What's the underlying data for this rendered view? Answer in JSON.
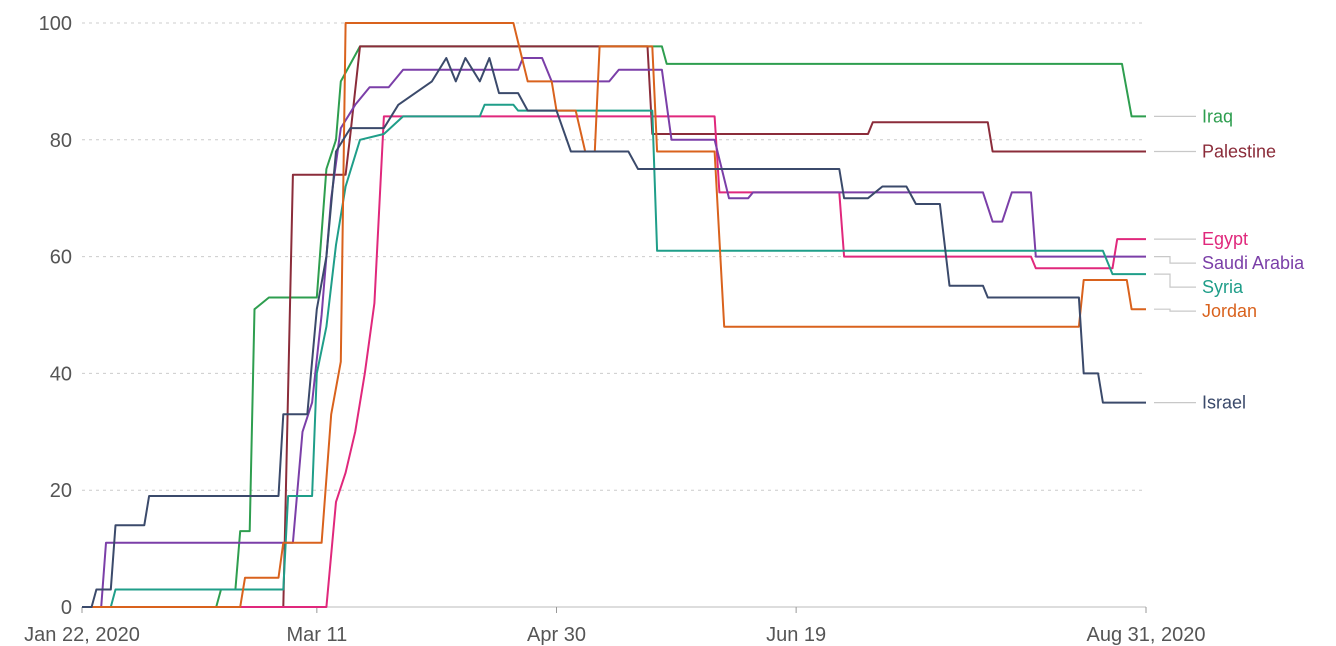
{
  "chart_data": {
    "type": "line",
    "title": "",
    "xlabel": "",
    "ylabel": "",
    "x_domain": [
      "2020-01-22",
      "2020-08-31"
    ],
    "ylim": [
      0,
      100
    ],
    "y_ticks": [
      0,
      20,
      40,
      60,
      80,
      100
    ],
    "y_tick_labels": [
      "0",
      "20",
      "40",
      "60",
      "80",
      "100"
    ],
    "x_ticks": [
      "2020-01-22",
      "2020-03-11",
      "2020-04-30",
      "2020-06-19",
      "2020-08-31"
    ],
    "x_tick_labels": [
      "Jan 22, 2020",
      "Mar 11",
      "Apr 30",
      "Jun 19",
      "Aug 31, 2020"
    ],
    "grid": "horizontal",
    "legend": "direct labels at right end",
    "series": [
      {
        "name": "Iraq",
        "color": "#2e9e4f",
        "points": [
          [
            "2020-01-22",
            0
          ],
          [
            "2020-02-19",
            0
          ],
          [
            "2020-02-20",
            3
          ],
          [
            "2020-02-23",
            3
          ],
          [
            "2020-02-24",
            13
          ],
          [
            "2020-02-26",
            13
          ],
          [
            "2020-02-27",
            51
          ],
          [
            "2020-03-01",
            53
          ],
          [
            "2020-03-11",
            53
          ],
          [
            "2020-03-13",
            75
          ],
          [
            "2020-03-15",
            80
          ],
          [
            "2020-03-16",
            90
          ],
          [
            "2020-03-20",
            96
          ],
          [
            "2020-05-22",
            96
          ],
          [
            "2020-05-23",
            93
          ],
          [
            "2020-08-26",
            93
          ],
          [
            "2020-08-28",
            84
          ],
          [
            "2020-08-31",
            84
          ]
        ]
      },
      {
        "name": "Palestine",
        "color": "#8b2c3a",
        "points": [
          [
            "2020-01-22",
            0
          ],
          [
            "2020-03-04",
            0
          ],
          [
            "2020-03-06",
            74
          ],
          [
            "2020-03-17",
            74
          ],
          [
            "2020-03-18",
            81
          ],
          [
            "2020-03-20",
            96
          ],
          [
            "2020-05-19",
            96
          ],
          [
            "2020-05-20",
            81
          ],
          [
            "2020-07-04",
            81
          ],
          [
            "2020-07-05",
            83
          ],
          [
            "2020-07-29",
            83
          ],
          [
            "2020-07-30",
            78
          ],
          [
            "2020-08-31",
            78
          ]
        ]
      },
      {
        "name": "Egypt",
        "color": "#e0287c",
        "points": [
          [
            "2020-01-22",
            0
          ],
          [
            "2020-03-13",
            0
          ],
          [
            "2020-03-15",
            18
          ],
          [
            "2020-03-17",
            23
          ],
          [
            "2020-03-19",
            30
          ],
          [
            "2020-03-21",
            40
          ],
          [
            "2020-03-23",
            52
          ],
          [
            "2020-03-25",
            84
          ],
          [
            "2020-06-02",
            84
          ],
          [
            "2020-06-03",
            71
          ],
          [
            "2020-06-28",
            71
          ],
          [
            "2020-06-29",
            60
          ],
          [
            "2020-08-07",
            60
          ],
          [
            "2020-08-08",
            58
          ],
          [
            "2020-08-24",
            58
          ],
          [
            "2020-08-25",
            63
          ],
          [
            "2020-08-31",
            63
          ]
        ]
      },
      {
        "name": "Saudi Arabia",
        "color": "#7b3fa8",
        "points": [
          [
            "2020-01-22",
            0
          ],
          [
            "2020-01-26",
            0
          ],
          [
            "2020-01-27",
            11
          ],
          [
            "2020-03-06",
            11
          ],
          [
            "2020-03-08",
            30
          ],
          [
            "2020-03-10",
            35
          ],
          [
            "2020-03-12",
            50
          ],
          [
            "2020-03-14",
            70
          ],
          [
            "2020-03-16",
            82
          ],
          [
            "2020-03-19",
            86
          ],
          [
            "2020-03-22",
            89
          ],
          [
            "2020-03-26",
            89
          ],
          [
            "2020-03-29",
            92
          ],
          [
            "2020-04-22",
            92
          ],
          [
            "2020-04-23",
            94
          ],
          [
            "2020-04-27",
            94
          ],
          [
            "2020-04-29",
            90
          ],
          [
            "2020-05-11",
            90
          ],
          [
            "2020-05-13",
            92
          ],
          [
            "2020-05-22",
            92
          ],
          [
            "2020-05-24",
            80
          ],
          [
            "2020-06-02",
            80
          ],
          [
            "2020-06-05",
            70
          ],
          [
            "2020-06-09",
            70
          ],
          [
            "2020-06-10",
            71
          ],
          [
            "2020-07-28",
            71
          ],
          [
            "2020-07-30",
            66
          ],
          [
            "2020-08-01",
            66
          ],
          [
            "2020-08-03",
            71
          ],
          [
            "2020-08-07",
            71
          ],
          [
            "2020-08-08",
            60
          ],
          [
            "2020-08-31",
            60
          ]
        ]
      },
      {
        "name": "Syria",
        "color": "#1f9e89",
        "points": [
          [
            "2020-01-22",
            0
          ],
          [
            "2020-01-28",
            0
          ],
          [
            "2020-01-29",
            3
          ],
          [
            "2020-03-04",
            3
          ],
          [
            "2020-03-05",
            19
          ],
          [
            "2020-03-10",
            19
          ],
          [
            "2020-03-11",
            40
          ],
          [
            "2020-03-13",
            48
          ],
          [
            "2020-03-15",
            62
          ],
          [
            "2020-03-17",
            72
          ],
          [
            "2020-03-20",
            80
          ],
          [
            "2020-03-25",
            81
          ],
          [
            "2020-03-29",
            84
          ],
          [
            "2020-04-14",
            84
          ],
          [
            "2020-04-15",
            86
          ],
          [
            "2020-04-21",
            86
          ],
          [
            "2020-04-22",
            85
          ],
          [
            "2020-05-20",
            85
          ],
          [
            "2020-05-21",
            61
          ],
          [
            "2020-08-22",
            61
          ],
          [
            "2020-08-24",
            57
          ],
          [
            "2020-08-31",
            57
          ]
        ]
      },
      {
        "name": "Jordan",
        "color": "#d9621d",
        "points": [
          [
            "2020-01-22",
            0
          ],
          [
            "2020-02-24",
            0
          ],
          [
            "2020-02-25",
            5
          ],
          [
            "2020-03-03",
            5
          ],
          [
            "2020-03-04",
            11
          ],
          [
            "2020-03-12",
            11
          ],
          [
            "2020-03-14",
            33
          ],
          [
            "2020-03-16",
            42
          ],
          [
            "2020-03-17",
            100
          ],
          [
            "2020-04-21",
            100
          ],
          [
            "2020-04-24",
            90
          ],
          [
            "2020-04-29",
            90
          ],
          [
            "2020-04-30",
            85
          ],
          [
            "2020-05-04",
            85
          ],
          [
            "2020-05-06",
            78
          ],
          [
            "2020-05-08",
            78
          ],
          [
            "2020-05-09",
            96
          ],
          [
            "2020-05-20",
            96
          ],
          [
            "2020-05-21",
            78
          ],
          [
            "2020-06-02",
            78
          ],
          [
            "2020-06-04",
            48
          ],
          [
            "2020-08-17",
            48
          ],
          [
            "2020-08-18",
            56
          ],
          [
            "2020-08-27",
            56
          ],
          [
            "2020-08-28",
            51
          ],
          [
            "2020-08-31",
            51
          ]
        ]
      },
      {
        "name": "Israel",
        "color": "#3b4a6b",
        "points": [
          [
            "2020-01-22",
            0
          ],
          [
            "2020-01-24",
            0
          ],
          [
            "2020-01-25",
            3
          ],
          [
            "2020-01-28",
            3
          ],
          [
            "2020-01-29",
            14
          ],
          [
            "2020-02-04",
            14
          ],
          [
            "2020-02-05",
            19
          ],
          [
            "2020-03-03",
            19
          ],
          [
            "2020-03-04",
            33
          ],
          [
            "2020-03-09",
            33
          ],
          [
            "2020-03-11",
            51
          ],
          [
            "2020-03-13",
            60
          ],
          [
            "2020-03-15",
            78
          ],
          [
            "2020-03-18",
            82
          ],
          [
            "2020-03-25",
            82
          ],
          [
            "2020-03-28",
            86
          ],
          [
            "2020-04-04",
            90
          ],
          [
            "2020-04-07",
            94
          ],
          [
            "2020-04-09",
            90
          ],
          [
            "2020-04-11",
            94
          ],
          [
            "2020-04-14",
            90
          ],
          [
            "2020-04-16",
            94
          ],
          [
            "2020-04-18",
            88
          ],
          [
            "2020-04-22",
            88
          ],
          [
            "2020-04-24",
            85
          ],
          [
            "2020-04-30",
            85
          ],
          [
            "2020-05-03",
            78
          ],
          [
            "2020-05-15",
            78
          ],
          [
            "2020-05-17",
            75
          ],
          [
            "2020-06-28",
            75
          ],
          [
            "2020-06-29",
            70
          ],
          [
            "2020-07-04",
            70
          ],
          [
            "2020-07-07",
            72
          ],
          [
            "2020-07-12",
            72
          ],
          [
            "2020-07-14",
            69
          ],
          [
            "2020-07-19",
            69
          ],
          [
            "2020-07-21",
            55
          ],
          [
            "2020-07-28",
            55
          ],
          [
            "2020-07-29",
            53
          ],
          [
            "2020-08-17",
            53
          ],
          [
            "2020-08-18",
            40
          ],
          [
            "2020-08-21",
            40
          ],
          [
            "2020-08-22",
            35
          ],
          [
            "2020-08-31",
            35
          ]
        ]
      }
    ]
  }
}
